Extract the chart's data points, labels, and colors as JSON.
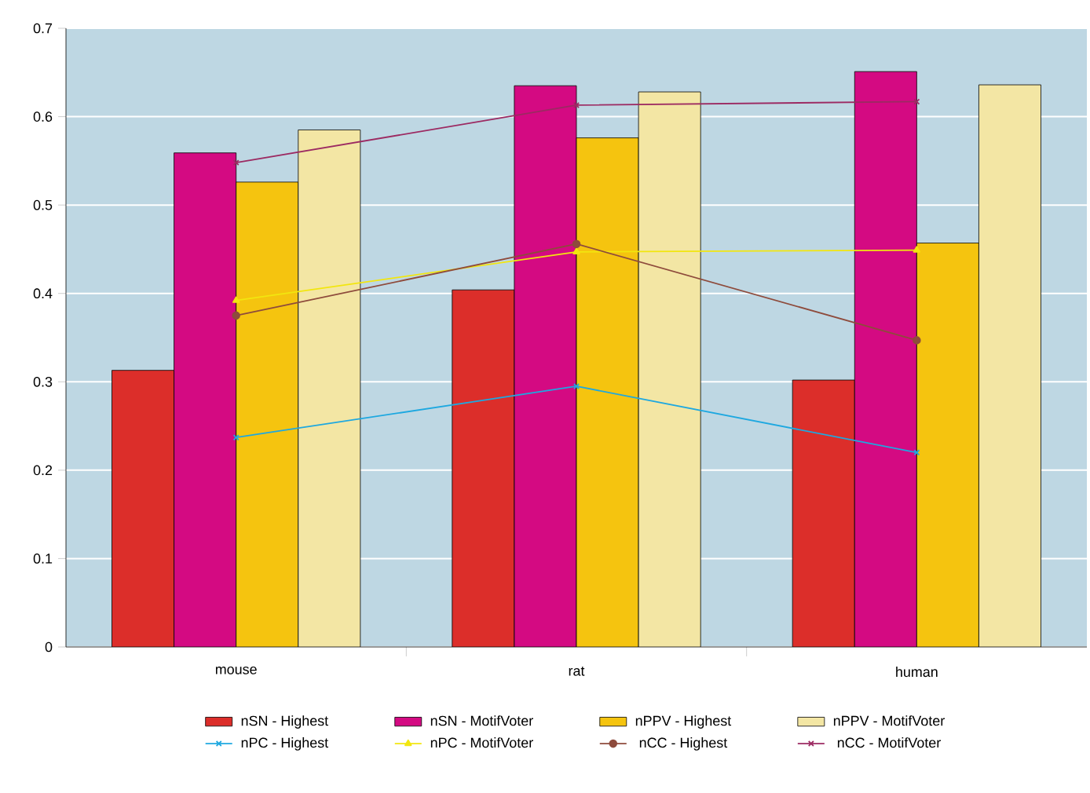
{
  "chart_data": {
    "type": "bar",
    "categories": [
      "mouse",
      "rat",
      "human"
    ],
    "series": [
      {
        "name": "nSN - Highest",
        "color": "#dc2e2a",
        "values": [
          0.313,
          0.404,
          0.302
        ]
      },
      {
        "name": "nSN - MotifVoter",
        "color": "#d40a82",
        "values": [
          0.559,
          0.635,
          0.651
        ]
      },
      {
        "name": "nPPV - Highest",
        "color": "#f5c40f",
        "values": [
          0.526,
          0.576,
          0.457
        ]
      },
      {
        "name": "nPPV - MotifVoter",
        "color": "#f3e6a4",
        "values": [
          0.585,
          0.628,
          0.636
        ]
      },
      {
        "name": "nPC - Highest",
        "type": "line",
        "color": "#1ea8e0",
        "marker": "cross",
        "values": [
          0.237,
          0.295,
          0.22
        ]
      },
      {
        "name": "nPC - MotifVoter",
        "type": "line",
        "color": "#f2e60f",
        "marker": "triangle",
        "values": [
          0.392,
          0.447,
          0.449
        ]
      },
      {
        "name": "nCC - Highest",
        "type": "line",
        "color": "#8e4b3c",
        "marker": "circle",
        "values": [
          0.375,
          0.456,
          0.347
        ]
      },
      {
        "name": "nCC - MotifVoter",
        "type": "line",
        "color": "#9c2a62",
        "marker": "cross",
        "values": [
          0.548,
          0.613,
          0.617
        ]
      }
    ],
    "ylim": [
      0,
      0.7
    ],
    "yticks": [
      0,
      0.1,
      0.2,
      0.3,
      0.4,
      0.5,
      0.6,
      0.7
    ],
    "grid": "y",
    "legend": "bottom"
  }
}
